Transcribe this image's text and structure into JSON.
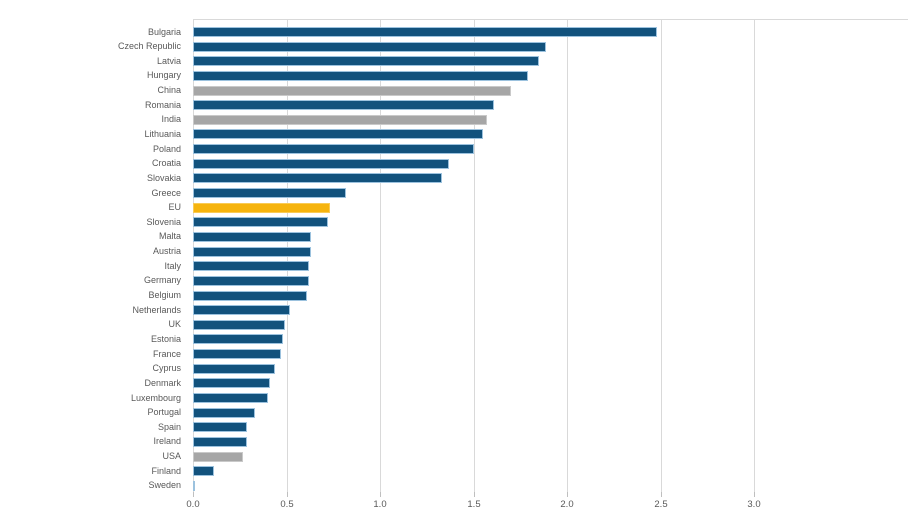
{
  "chart_data": {
    "type": "bar",
    "orientation": "horizontal",
    "title": "",
    "xlabel": "",
    "ylabel": "",
    "xlim": [
      0,
      3.0
    ],
    "x_tick_values": [
      0,
      0.5,
      1.0,
      1.5,
      2.0,
      2.5,
      3.0
    ],
    "x_tick_labels": [
      "0.0",
      "0.5",
      "1.0",
      "1.5",
      "2.0",
      "2.5",
      "3.0"
    ],
    "grid": "vertical light gray gridlines, top plot border, no legend",
    "categories": [
      "Bulgaria",
      "Czech Republic",
      "Latvia",
      "Hungary",
      "China",
      "Romania",
      "India",
      "Lithuania",
      "Poland",
      "Croatia",
      "Slovakia",
      "Greece",
      "EU",
      "Slovenia",
      "Malta",
      "Austria",
      "Italy",
      "Germany",
      "Belgium",
      "Netherlands",
      "UK",
      "Estonia",
      "France",
      "Cyprus",
      "Denmark",
      "Luxembourg",
      "Portugal",
      "Spain",
      "Ireland",
      "USA",
      "Finland",
      "Sweden"
    ],
    "values": [
      2.48,
      1.89,
      1.85,
      1.79,
      1.7,
      1.61,
      1.57,
      1.55,
      1.5,
      1.37,
      1.33,
      0.82,
      0.73,
      0.72,
      0.63,
      0.63,
      0.62,
      0.62,
      0.61,
      0.52,
      0.49,
      0.48,
      0.47,
      0.44,
      0.41,
      0.4,
      0.33,
      0.29,
      0.29,
      0.27,
      0.11,
      0.01
    ],
    "point_colors": [
      "#12527D",
      "#12527D",
      "#12527D",
      "#12527D",
      "#A6A6A6",
      "#12527D",
      "#A6A6A6",
      "#12527D",
      "#12527D",
      "#12527D",
      "#12527D",
      "#12527D",
      "#F6B40E",
      "#12527D",
      "#12527D",
      "#12527D",
      "#12527D",
      "#12527D",
      "#12527D",
      "#12527D",
      "#12527D",
      "#12527D",
      "#12527D",
      "#12527D",
      "#12527D",
      "#12527D",
      "#12527D",
      "#12527D",
      "#12527D",
      "#A6A6A6",
      "#12527D",
      "#12527D"
    ],
    "color_legend": {
      "eu_member_bar": "#12527D",
      "eu_aggregate_highlight": "#F6B40E",
      "non_eu_country": "#A6A6A6",
      "gridline": "#D9D9D9",
      "tick_mark": "#BFBFBF",
      "label_text": "#595959"
    }
  }
}
